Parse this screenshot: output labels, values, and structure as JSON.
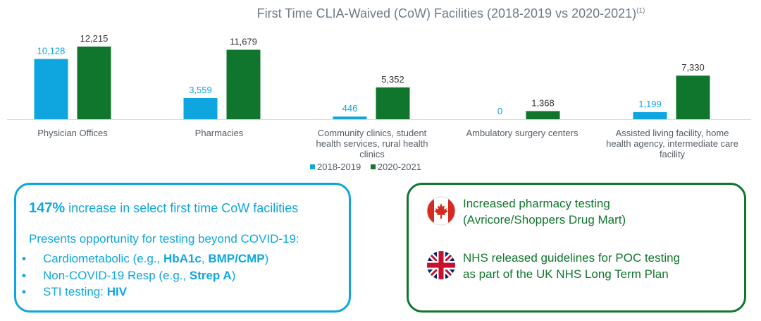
{
  "chart_data": {
    "type": "bar",
    "title": "First Time CLIA-Waived (CoW) Facilities (2018-2019 vs 2020-2021)",
    "title_superscript": "(1)",
    "categories": [
      "Physician Offices",
      "Pharmacies",
      "Community clinics, student health services, rural health clinics",
      "Ambulatory surgery centers",
      "Assisted living facility, home health agency, intermediate care facility"
    ],
    "series": [
      {
        "name": "2018-2019",
        "color": "#0fa6e0",
        "values": [
          10128,
          3559,
          446,
          0,
          1199
        ],
        "labels": [
          "10,128",
          "3,559",
          "446",
          "0",
          "1,199"
        ]
      },
      {
        "name": "2020-2021",
        "color": "#11762d",
        "values": [
          12215,
          11679,
          5352,
          1368,
          7330
        ],
        "labels": [
          "12,215",
          "11,679",
          "5,352",
          "1,368",
          "7,330"
        ]
      }
    ],
    "xlabel": "",
    "ylabel": "",
    "ylim": [
      0,
      12215
    ],
    "grid": false,
    "legend_position": "bottom-center"
  },
  "left_box": {
    "headline_bold": "147%",
    "headline_rest": " increase in select first time CoW facilities",
    "intro": "Presents opportunity for testing beyond COVID-19:",
    "bullet_char": "•",
    "bullets": [
      {
        "pre": "Cardiometabolic (e.g., ",
        "b1": "HbA1c",
        "mid": ", ",
        "b2": "BMP/CMP",
        "post": ")"
      },
      {
        "pre": "Non-COVID-19 Resp (e.g., ",
        "b1": "Strep A",
        "mid": "",
        "b2": "",
        "post": ")"
      },
      {
        "pre": "STI testing: ",
        "b1": "HIV",
        "mid": "",
        "b2": "",
        "post": ""
      }
    ]
  },
  "right_box": {
    "items": [
      {
        "flag": "canada-flag-icon",
        "line1": "Increased pharmacy testing",
        "line2": "(Avricore/Shoppers Drug Mart)"
      },
      {
        "flag": "uk-flag-icon",
        "line1": "NHS released guidelines for POC testing",
        "line2": "as part of the UK NHS Long Term Plan"
      }
    ]
  }
}
